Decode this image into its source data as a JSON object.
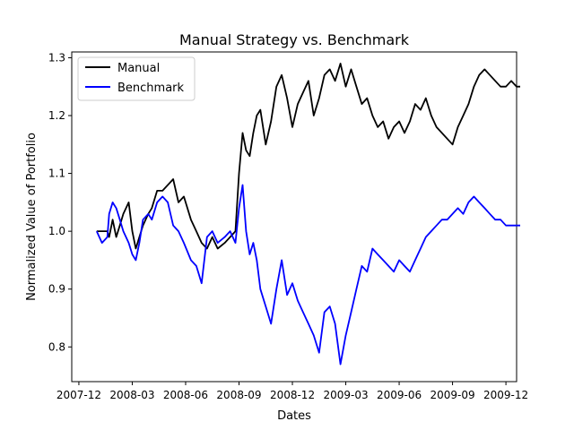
{
  "chart_data": {
    "type": "line",
    "title": "Manual Strategy vs. Benchmark",
    "xlabel": "Dates",
    "ylabel": "Normalized Value of Portfolio",
    "xlim": [
      -0.4,
      24.6
    ],
    "ylim": [
      0.74,
      1.31
    ],
    "grid": false,
    "legend_position": "top-left",
    "xticks": [
      {
        "value": 0,
        "label": "2007-12"
      },
      {
        "value": 3,
        "label": "2008-03"
      },
      {
        "value": 6,
        "label": "2008-06"
      },
      {
        "value": 9,
        "label": "2008-09"
      },
      {
        "value": 12,
        "label": "2008-12"
      },
      {
        "value": 15,
        "label": "2009-03"
      },
      {
        "value": 18,
        "label": "2009-06"
      },
      {
        "value": 21,
        "label": "2009-09"
      },
      {
        "value": 24,
        "label": "2009-12"
      }
    ],
    "yticks": [
      {
        "value": 0.8,
        "label": "0.8"
      },
      {
        "value": 0.9,
        "label": "0.9"
      },
      {
        "value": 1.0,
        "label": "1.0"
      },
      {
        "value": 1.1,
        "label": "1.1"
      },
      {
        "value": 1.2,
        "label": "1.2"
      },
      {
        "value": 1.3,
        "label": "1.3"
      }
    ],
    "series": [
      {
        "name": "Manual",
        "color": "#000000",
        "x": [
          1.0,
          1.3,
          1.6,
          1.7,
          1.9,
          2.1,
          2.3,
          2.5,
          2.8,
          3.0,
          3.2,
          3.4,
          3.6,
          3.9,
          4.1,
          4.4,
          4.7,
          5.0,
          5.3,
          5.6,
          5.9,
          6.3,
          6.6,
          6.9,
          7.2,
          7.5,
          7.8,
          8.2,
          8.5,
          8.8,
          9.0,
          9.2,
          9.4,
          9.6,
          9.8,
          10.0,
          10.2,
          10.5,
          10.8,
          11.1,
          11.4,
          11.7,
          12.0,
          12.3,
          12.6,
          12.9,
          13.2,
          13.5,
          13.8,
          14.1,
          14.4,
          14.7,
          15.0,
          15.3,
          15.6,
          15.9,
          16.2,
          16.5,
          16.8,
          17.1,
          17.4,
          17.7,
          18.0,
          18.3,
          18.6,
          18.9,
          19.2,
          19.5,
          19.8,
          20.1,
          20.4,
          20.7,
          21.0,
          21.3,
          21.6,
          21.9,
          22.2,
          22.5,
          22.8,
          23.1,
          23.4,
          23.7,
          24.0,
          24.3,
          24.6,
          24.8
        ],
        "y": [
          1.0,
          1.0,
          1.0,
          0.99,
          1.02,
          0.99,
          1.01,
          1.03,
          1.05,
          1.0,
          0.97,
          0.99,
          1.01,
          1.03,
          1.04,
          1.07,
          1.07,
          1.08,
          1.09,
          1.05,
          1.06,
          1.02,
          1.0,
          0.98,
          0.97,
          0.99,
          0.97,
          0.98,
          0.99,
          1.0,
          1.1,
          1.17,
          1.14,
          1.13,
          1.17,
          1.2,
          1.21,
          1.15,
          1.19,
          1.25,
          1.27,
          1.23,
          1.18,
          1.22,
          1.24,
          1.26,
          1.2,
          1.23,
          1.27,
          1.28,
          1.26,
          1.29,
          1.25,
          1.28,
          1.25,
          1.22,
          1.23,
          1.2,
          1.18,
          1.19,
          1.16,
          1.18,
          1.19,
          1.17,
          1.19,
          1.22,
          1.21,
          1.23,
          1.2,
          1.18,
          1.17,
          1.16,
          1.15,
          1.18,
          1.2,
          1.22,
          1.25,
          1.27,
          1.28,
          1.27,
          1.26,
          1.25,
          1.25,
          1.26,
          1.25,
          1.25
        ]
      },
      {
        "name": "Benchmark",
        "color": "#0000ff",
        "x": [
          1.0,
          1.3,
          1.6,
          1.7,
          1.9,
          2.1,
          2.3,
          2.5,
          2.8,
          3.0,
          3.2,
          3.4,
          3.6,
          3.9,
          4.1,
          4.4,
          4.7,
          5.0,
          5.3,
          5.6,
          5.9,
          6.3,
          6.6,
          6.9,
          7.2,
          7.5,
          7.8,
          8.2,
          8.5,
          8.8,
          9.0,
          9.2,
          9.4,
          9.6,
          9.8,
          10.0,
          10.2,
          10.5,
          10.8,
          11.1,
          11.4,
          11.7,
          12.0,
          12.3,
          12.6,
          12.9,
          13.2,
          13.5,
          13.8,
          14.1,
          14.4,
          14.7,
          15.0,
          15.3,
          15.6,
          15.9,
          16.2,
          16.5,
          16.8,
          17.1,
          17.4,
          17.7,
          18.0,
          18.3,
          18.6,
          18.9,
          19.2,
          19.5,
          19.8,
          20.1,
          20.4,
          20.7,
          21.0,
          21.3,
          21.6,
          21.9,
          22.2,
          22.5,
          22.8,
          23.1,
          23.4,
          23.7,
          24.0,
          24.3,
          24.6,
          24.8
        ],
        "y": [
          1.0,
          0.98,
          0.99,
          1.03,
          1.05,
          1.04,
          1.02,
          1.0,
          0.98,
          0.96,
          0.95,
          0.98,
          1.02,
          1.03,
          1.02,
          1.05,
          1.06,
          1.05,
          1.01,
          1.0,
          0.98,
          0.95,
          0.94,
          0.91,
          0.99,
          1.0,
          0.98,
          0.99,
          1.0,
          0.98,
          1.04,
          1.08,
          1.0,
          0.96,
          0.98,
          0.95,
          0.9,
          0.87,
          0.84,
          0.9,
          0.95,
          0.89,
          0.91,
          0.88,
          0.86,
          0.84,
          0.82,
          0.79,
          0.86,
          0.87,
          0.84,
          0.77,
          0.82,
          0.86,
          0.9,
          0.94,
          0.93,
          0.97,
          0.96,
          0.95,
          0.94,
          0.93,
          0.95,
          0.94,
          0.93,
          0.95,
          0.97,
          0.99,
          1.0,
          1.01,
          1.02,
          1.02,
          1.03,
          1.04,
          1.03,
          1.05,
          1.06,
          1.05,
          1.04,
          1.03,
          1.02,
          1.02,
          1.01,
          1.01,
          1.01,
          1.01
        ]
      }
    ]
  }
}
